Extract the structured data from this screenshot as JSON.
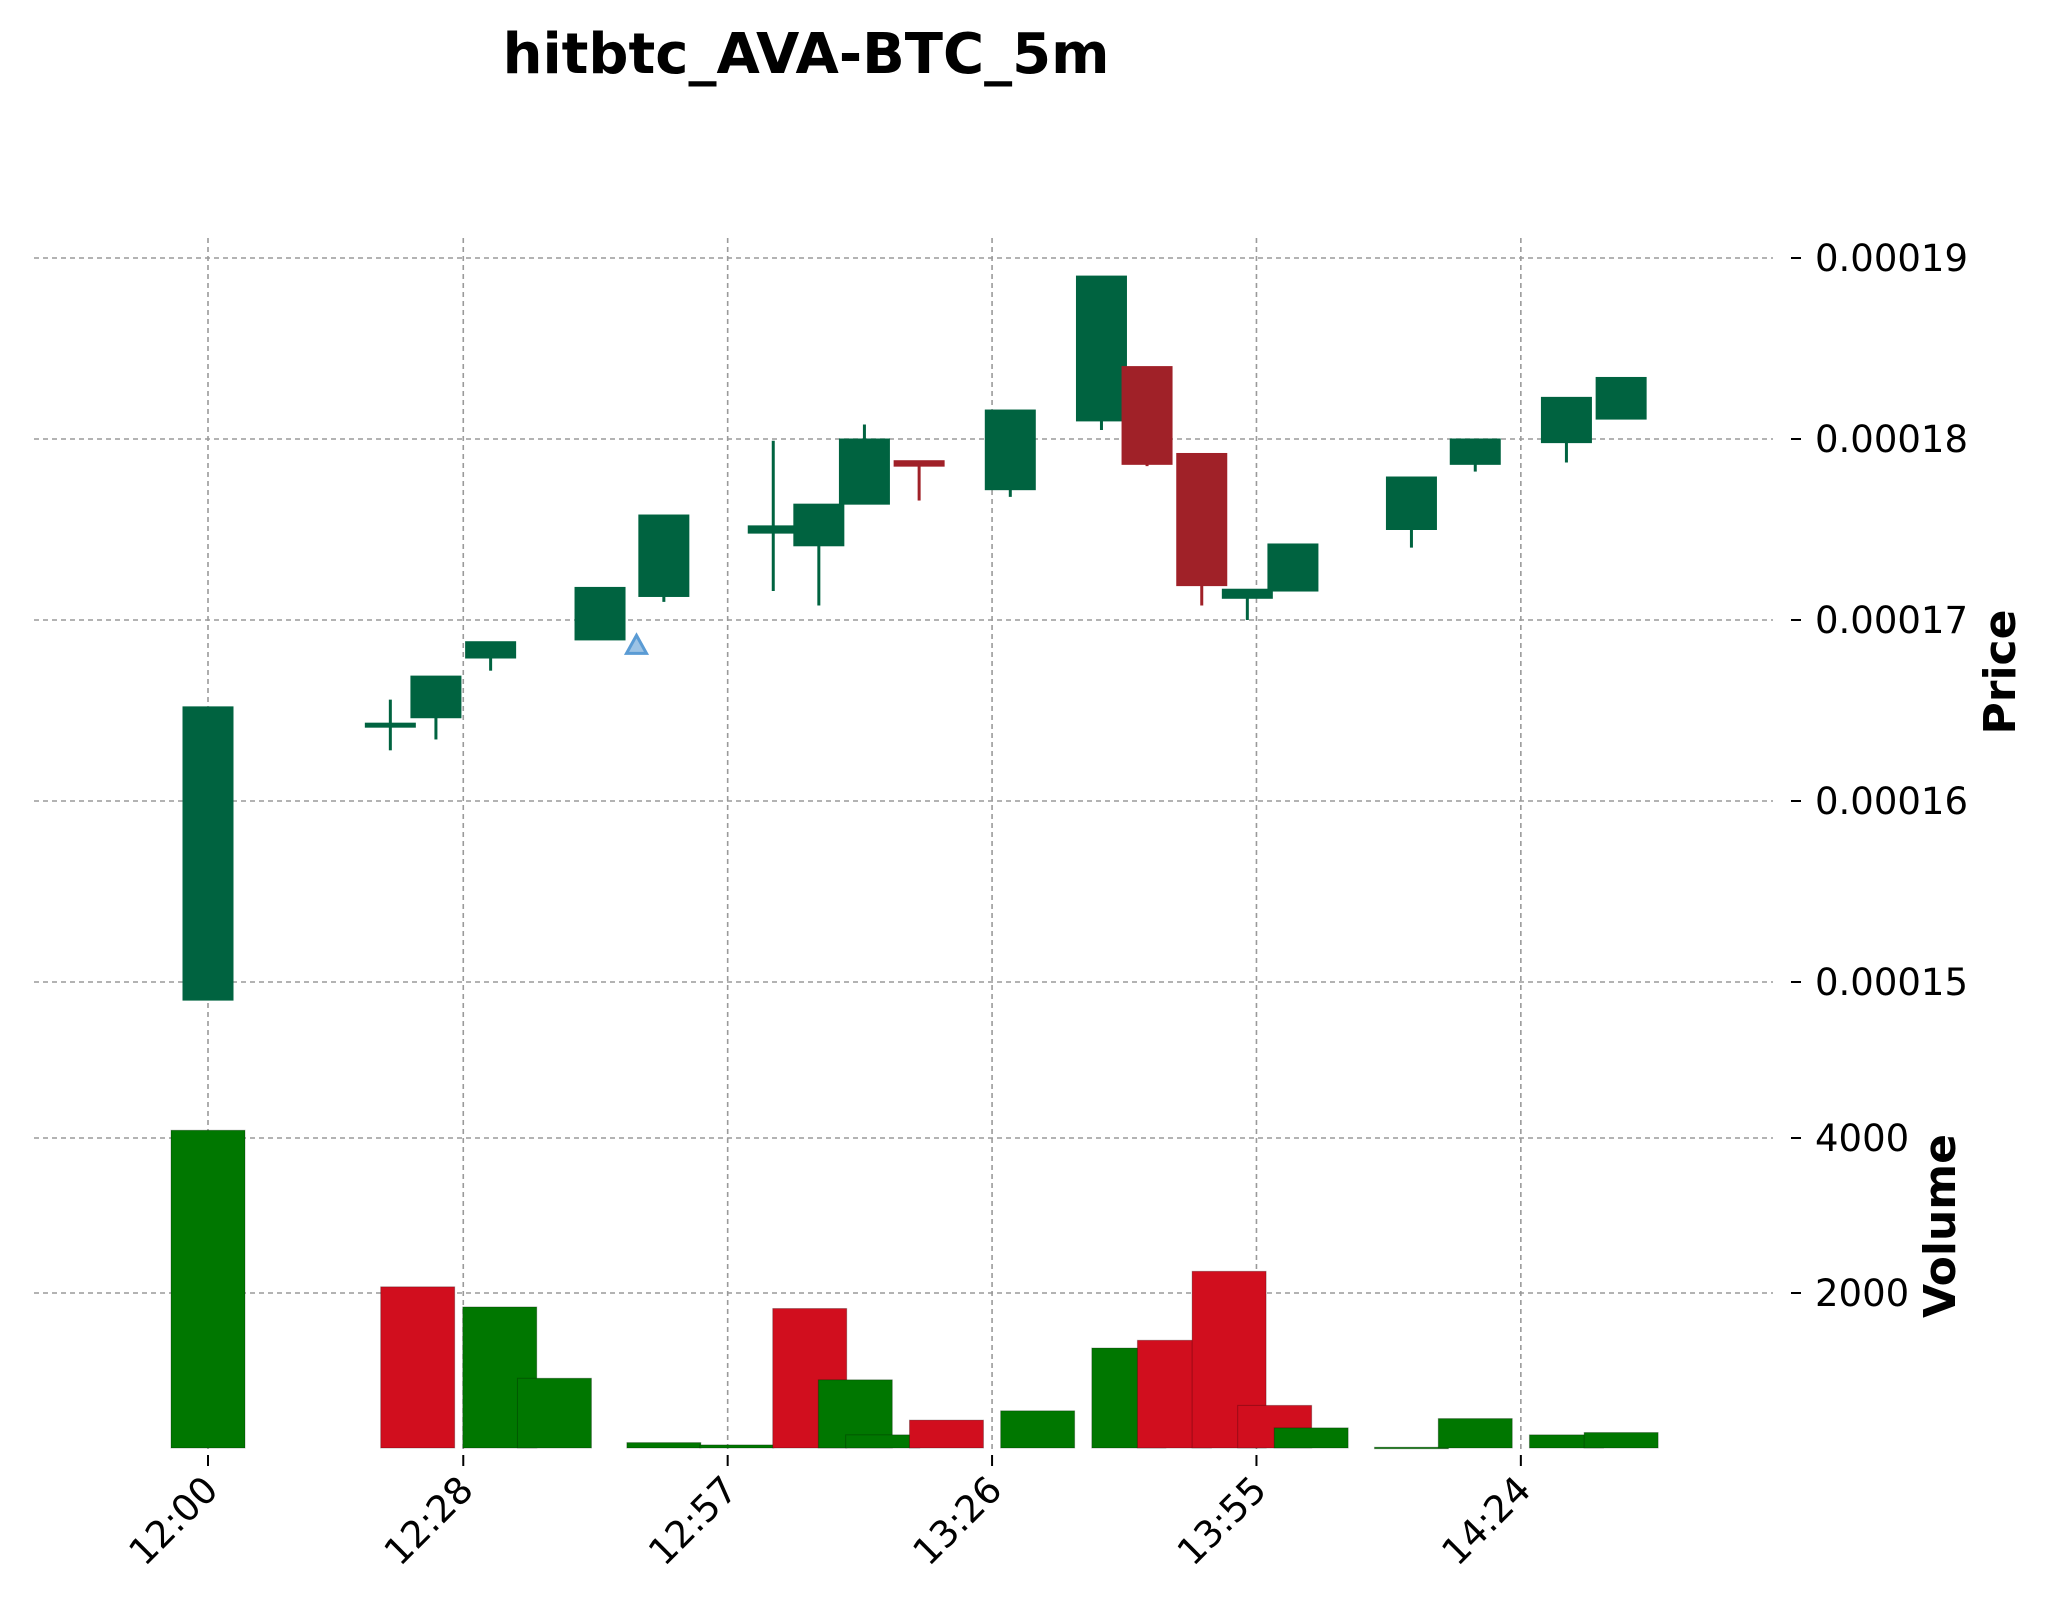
{
  "chart_data": {
    "type": "candlestick",
    "title": "hitbtc_AVA-BTC_5m",
    "price_ylabel": "Price",
    "volume_ylabel": "Volume",
    "price_ylim": [
      0.000141,
      0.000191
    ],
    "volume_ylim": [
      0,
      4000
    ],
    "price_yticks": [
      "0.00019",
      "0.00018",
      "0.00017",
      "0.00016",
      "0.00015"
    ],
    "price_ytick_values": [
      0.00019,
      0.00018,
      0.00017,
      0.00016,
      0.00015
    ],
    "volume_yticks": [
      "4000",
      "2000"
    ],
    "volume_ytick_values": [
      4000,
      2000
    ],
    "xticks": [
      "12:00",
      "12:28",
      "12:57",
      "13:26",
      "13:55",
      "14:24"
    ],
    "xtick_minutes": [
      0,
      28,
      57,
      86,
      115,
      144
    ],
    "grid": true,
    "up_color": "#006340",
    "down_color": "#a02128",
    "volume_up_color": "#007700",
    "volume_down_color": "#d10e1e",
    "marker_color": "#5a9bd4",
    "candles": [
      {
        "t": "12:00",
        "m": 0,
        "o": 0.000149,
        "h": 0.0001652,
        "l": 0.000149,
        "c": 0.0001652
      },
      {
        "t": "12:20",
        "m": 20,
        "o": 0.0001642,
        "h": 0.0001656,
        "l": 0.0001628,
        "c": 0.0001643
      },
      {
        "t": "12:25",
        "m": 25,
        "o": 0.0001646,
        "h": 0.0001669,
        "l": 0.0001634,
        "c": 0.0001669
      },
      {
        "t": "12:31",
        "m": 31,
        "o": 0.0001679,
        "h": 0.0001688,
        "l": 0.0001672,
        "c": 0.0001688
      },
      {
        "t": "12:43",
        "m": 43,
        "o": 0.0001689,
        "h": 0.0001718,
        "l": 0.0001689,
        "c": 0.0001718
      },
      {
        "t": "12:50",
        "m": 50,
        "o": 0.0001713,
        "h": 0.0001758,
        "l": 0.000171,
        "c": 0.0001758
      },
      {
        "t": "12:62",
        "m": 62,
        "o": 0.0001748,
        "h": 0.0001799,
        "l": 0.0001716,
        "c": 0.0001752
      },
      {
        "t": "12:67",
        "m": 67,
        "o": 0.0001741,
        "h": 0.0001764,
        "l": 0.0001708,
        "c": 0.0001764
      },
      {
        "t": "12:72",
        "m": 72,
        "o": 0.0001764,
        "h": 0.0001808,
        "l": 0.0001764,
        "c": 0.00018
      },
      {
        "t": "12:78",
        "m": 78,
        "o": 0.0001788,
        "h": 0.0001788,
        "l": 0.0001766,
        "c": 0.0001785
      },
      {
        "t": "12:88",
        "m": 88,
        "o": 0.0001772,
        "h": 0.0001816,
        "l": 0.0001768,
        "c": 0.0001816
      },
      {
        "t": "12:98",
        "m": 98,
        "o": 0.000181,
        "h": 0.000189,
        "l": 0.0001805,
        "c": 0.000189
      },
      {
        "t": "12:103",
        "m": 103,
        "o": 0.000184,
        "h": 0.000184,
        "l": 0.0001785,
        "c": 0.0001786
      },
      {
        "t": "12:109",
        "m": 109,
        "o": 0.0001792,
        "h": 0.0001792,
        "l": 0.0001708,
        "c": 0.0001719
      },
      {
        "t": "12:114",
        "m": 114,
        "o": 0.0001712,
        "h": 0.0001717,
        "l": 0.00017,
        "c": 0.0001717
      },
      {
        "t": "12:119",
        "m": 119,
        "o": 0.0001716,
        "h": 0.0001742,
        "l": 0.0001716,
        "c": 0.0001742
      },
      {
        "t": "12:132",
        "m": 132,
        "o": 0.000175,
        "h": 0.0001779,
        "l": 0.000174,
        "c": 0.0001779
      },
      {
        "t": "12:139",
        "m": 139,
        "o": 0.0001786,
        "h": 0.00018,
        "l": 0.0001782,
        "c": 0.00018
      },
      {
        "t": "12:149",
        "m": 149,
        "o": 0.0001798,
        "h": 0.0001823,
        "l": 0.0001787,
        "c": 0.0001823
      },
      {
        "t": "12:155",
        "m": 155,
        "o": 0.0001811,
        "h": 0.0001834,
        "l": 0.0001811,
        "c": 0.0001834
      }
    ],
    "volumes": [
      {
        "m": 0,
        "v": 4100,
        "dir": "up"
      },
      {
        "m": 23,
        "v": 2080,
        "dir": "down"
      },
      {
        "m": 32,
        "v": 1820,
        "dir": "up"
      },
      {
        "m": 38,
        "v": 900,
        "dir": "up"
      },
      {
        "m": 50,
        "v": 70,
        "dir": "up"
      },
      {
        "m": 58,
        "v": 40,
        "dir": "up"
      },
      {
        "m": 66,
        "v": 1800,
        "dir": "down"
      },
      {
        "m": 71,
        "v": 880,
        "dir": "up"
      },
      {
        "m": 74,
        "v": 170,
        "dir": "up"
      },
      {
        "m": 81,
        "v": 360,
        "dir": "down"
      },
      {
        "m": 91,
        "v": 480,
        "dir": "up"
      },
      {
        "m": 101,
        "v": 1290,
        "dir": "up"
      },
      {
        "m": 106,
        "v": 1390,
        "dir": "down"
      },
      {
        "m": 112,
        "v": 2280,
        "dir": "down"
      },
      {
        "m": 117,
        "v": 550,
        "dir": "down"
      },
      {
        "m": 121,
        "v": 260,
        "dir": "up"
      },
      {
        "m": 132,
        "v": 10,
        "dir": "up"
      },
      {
        "m": 139,
        "v": 380,
        "dir": "up"
      },
      {
        "m": 149,
        "v": 170,
        "dir": "up"
      },
      {
        "m": 155,
        "v": 200,
        "dir": "up"
      }
    ],
    "markers": [
      {
        "type": "triangle-up",
        "m": 47,
        "price": 0.0001686
      }
    ]
  }
}
